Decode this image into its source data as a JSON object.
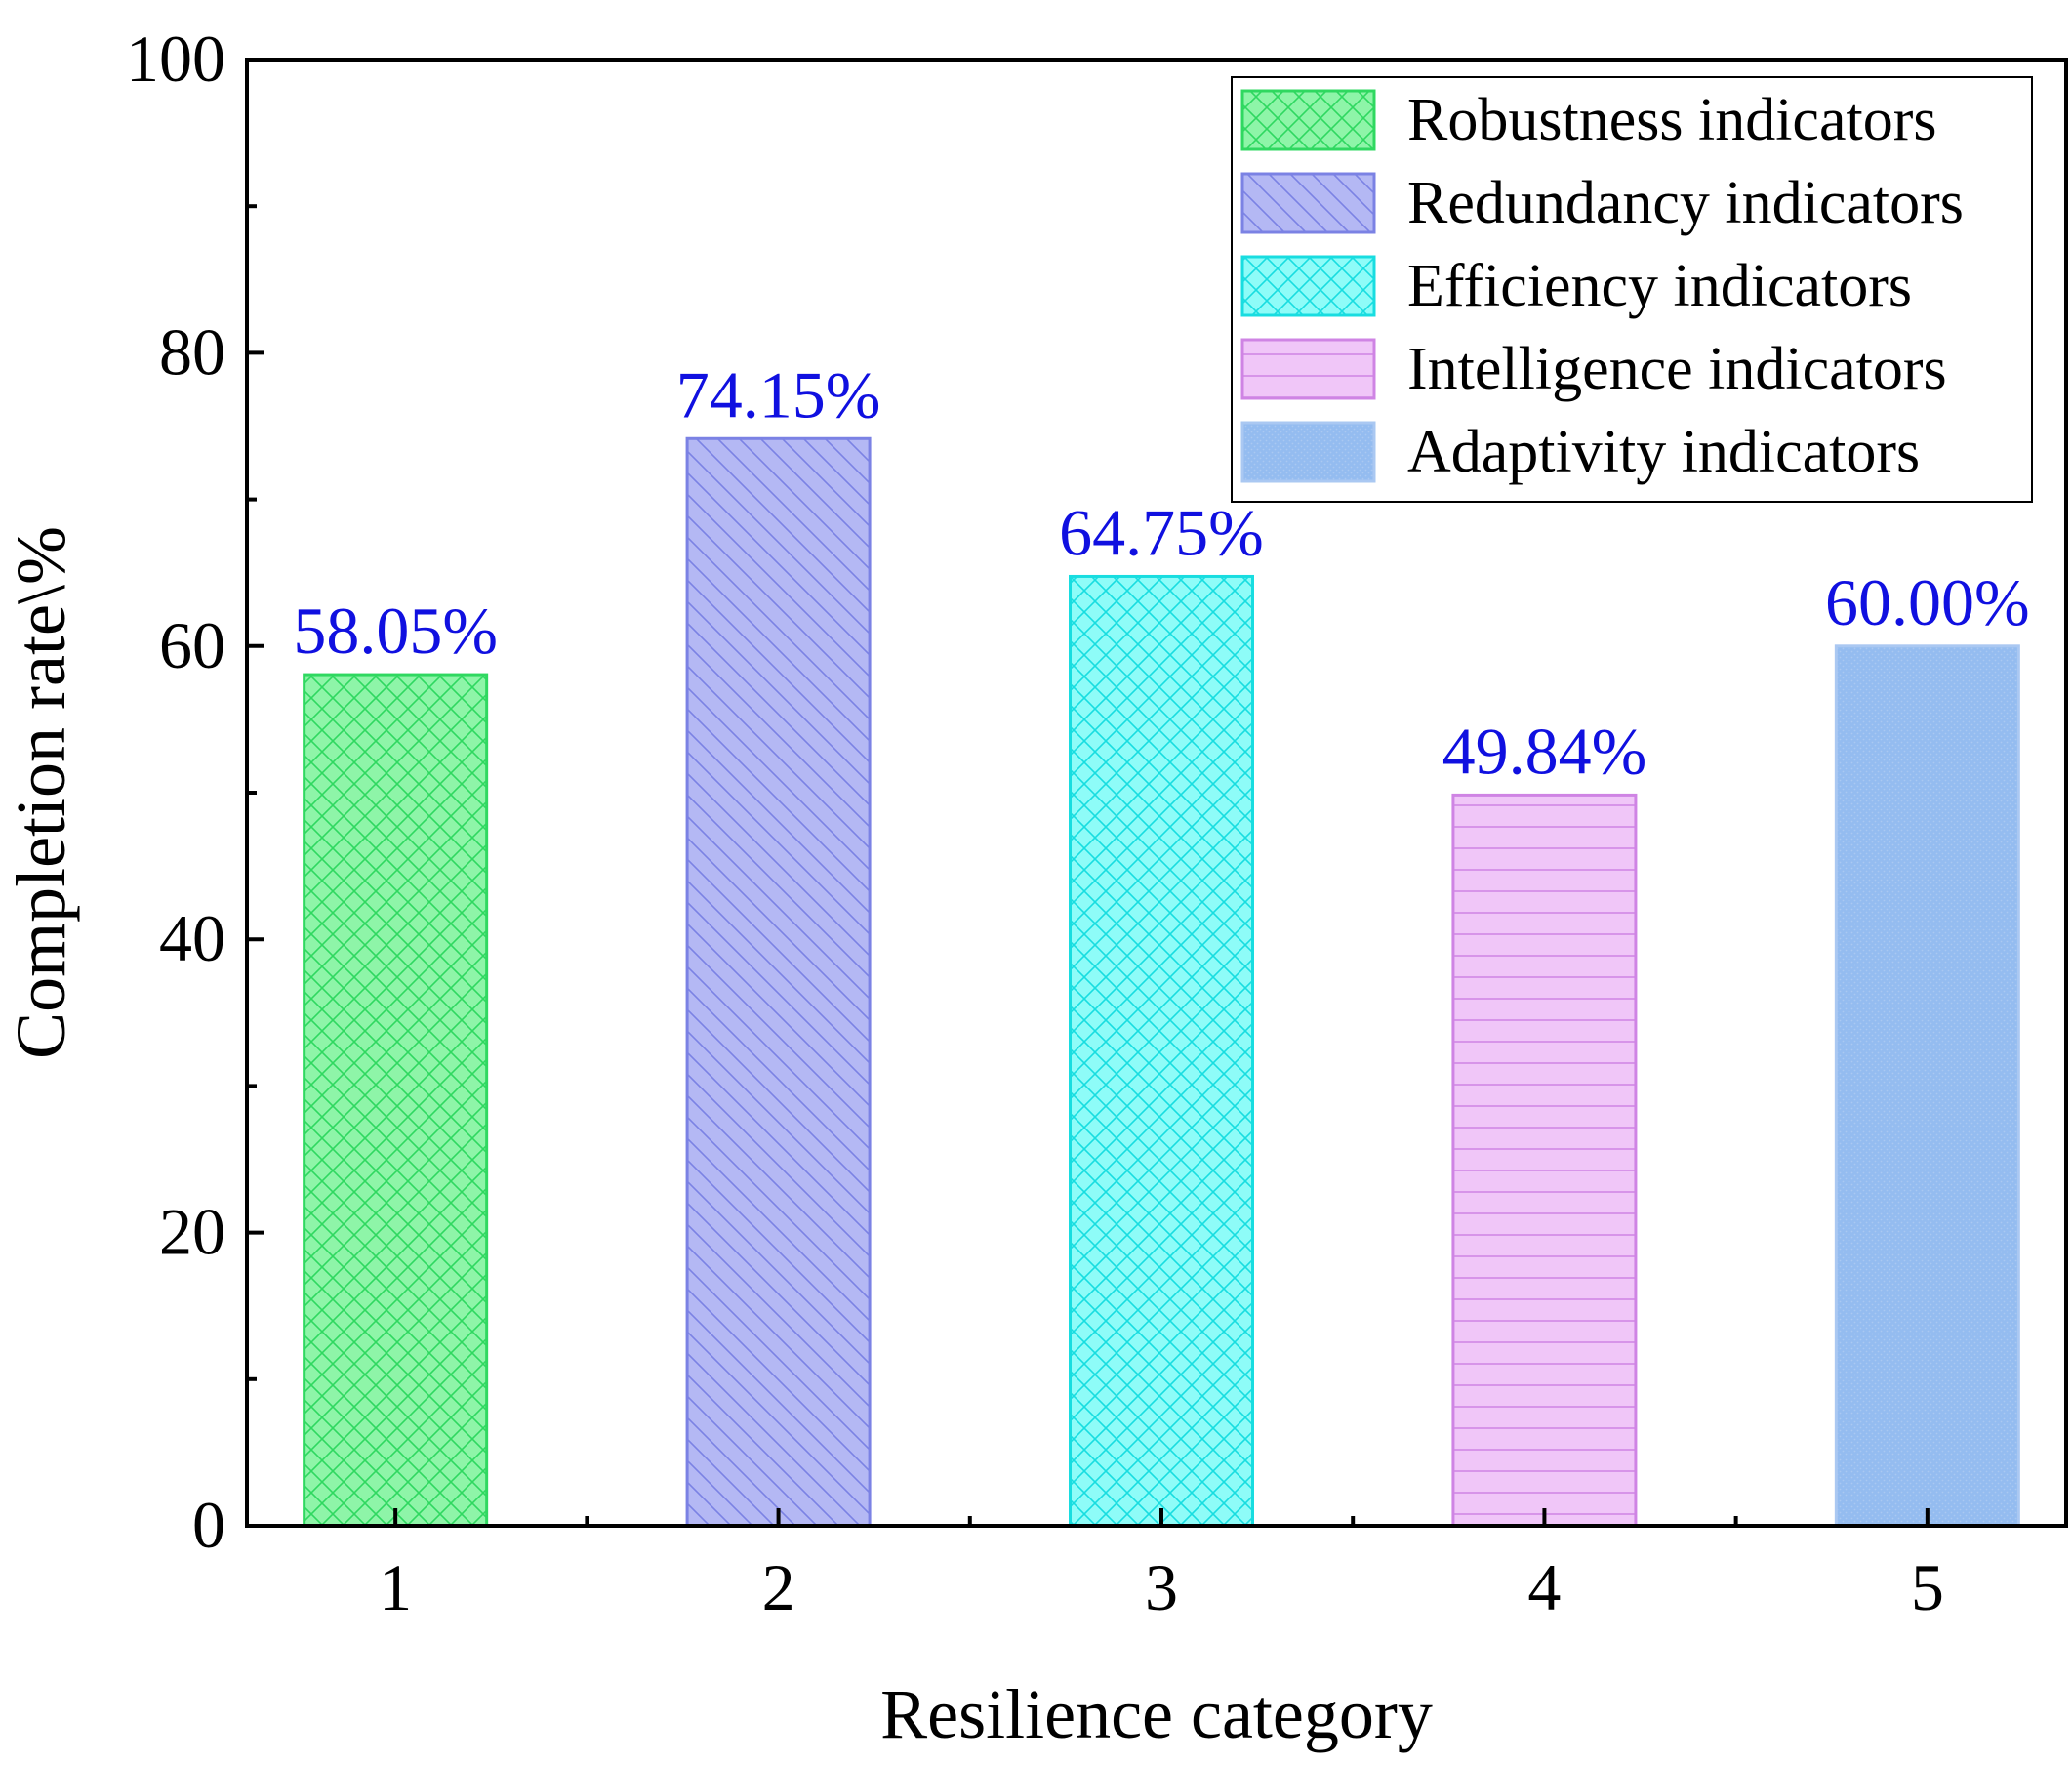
{
  "chart_data": {
    "type": "bar",
    "title": "",
    "xlabel": "Resilience category",
    "ylabel": "Completion rate\\%",
    "ylim": [
      0,
      100
    ],
    "yticks": [
      0,
      20,
      40,
      60,
      80,
      100
    ],
    "grid": false,
    "legend_position": "top-right",
    "label_color": "#1010e0",
    "categories": [
      "1",
      "2",
      "3",
      "4",
      "5"
    ],
    "series": [
      {
        "name": "Robustness indicators",
        "category": "1",
        "value": 58.05,
        "label": "58.05%",
        "fill": "#8ef5a8",
        "stroke": "#2fd860",
        "pattern": "crosshatch"
      },
      {
        "name": "Redundancy indicators",
        "category": "2",
        "value": 74.15,
        "label": "74.15%",
        "fill": "#b4b8f4",
        "stroke": "#7b82e4",
        "pattern": "diagonal"
      },
      {
        "name": "Efficiency indicators",
        "category": "3",
        "value": 64.75,
        "label": "64.75%",
        "fill": "#8efcf8",
        "stroke": "#18dde0",
        "pattern": "crosshatch"
      },
      {
        "name": "Intelligence indicators",
        "category": "4",
        "value": 49.84,
        "label": "49.84%",
        "fill": "#f0c6f8",
        "stroke": "#cf84e4",
        "pattern": "horizontal"
      },
      {
        "name": "Adaptivity indicators",
        "category": "5",
        "value": 60.0,
        "label": "60.00%",
        "fill": "#94bcf0",
        "stroke": "#aac8f2",
        "pattern": "dots"
      }
    ]
  }
}
